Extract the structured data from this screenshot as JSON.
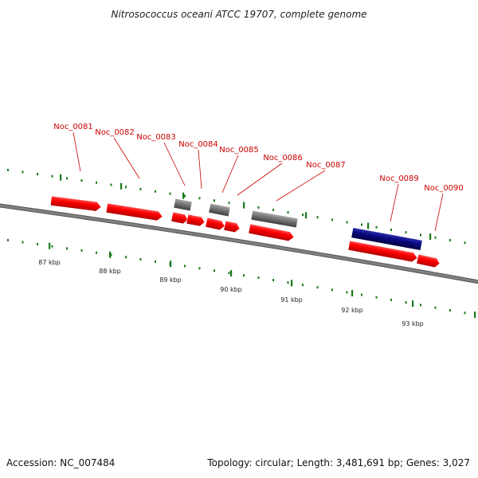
{
  "title": "Nitrosococcus oceani ATCC 19707, complete genome",
  "footer": {
    "accession": "Accession: NC_007484",
    "summary": "Topology: circular; Length: 3,481,691 bp; Genes: 3,027"
  },
  "colors": {
    "cds": "#ff0000",
    "gene": "#777777",
    "rna": "#0a0a80",
    "tick": "#1a7a1a",
    "backbone": "#808080",
    "label": "#cc0000"
  },
  "scale_ticks": [
    "87 kbp",
    "88 kbp",
    "89 kbp",
    "90 kbp",
    "91 kbp",
    "92 kbp",
    "93 kbp"
  ],
  "gene_labels": [
    "Noc_0081",
    "Noc_0082",
    "Noc_0083",
    "Noc_0084",
    "Noc_0085",
    "Noc_0086",
    "Noc_0087",
    "Noc_0089",
    "Noc_0090"
  ]
}
